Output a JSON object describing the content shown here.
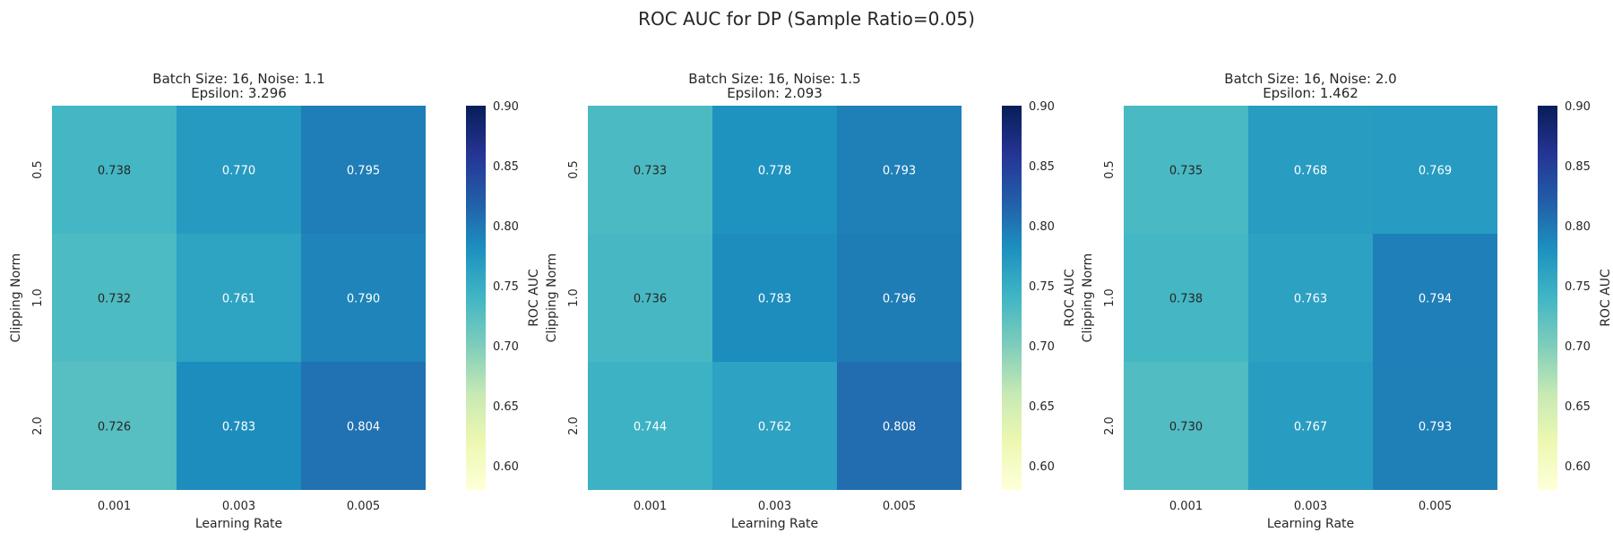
{
  "figure_title": "ROC AUC for DP (Sample Ratio=0.05)",
  "colorbar_label": "ROC AUC",
  "colorbar_ticks": [
    "0.60",
    "0.65",
    "0.70",
    "0.75",
    "0.80",
    "0.85",
    "0.90"
  ],
  "chart_data": [
    {
      "type": "heatmap",
      "title_line1": "Batch Size: 16, Noise: 1.1",
      "title_line2": "Epsilon: 3.296",
      "xlabel": "Learning Rate",
      "ylabel": "Clipping Norm",
      "x_categories": [
        "0.001",
        "0.003",
        "0.005"
      ],
      "y_categories": [
        "0.5",
        "1.0",
        "2.0"
      ],
      "values": [
        [
          0.738,
          0.77,
          0.795
        ],
        [
          0.732,
          0.761,
          0.79
        ],
        [
          0.726,
          0.783,
          0.804
        ]
      ],
      "vmin": 0.58,
      "vmax": 0.9,
      "colormap": "YlGnBu"
    },
    {
      "type": "heatmap",
      "title_line1": "Batch Size: 16, Noise: 1.5",
      "title_line2": "Epsilon: 2.093",
      "xlabel": "Learning Rate",
      "ylabel": "Clipping Norm",
      "x_categories": [
        "0.001",
        "0.003",
        "0.005"
      ],
      "y_categories": [
        "0.5",
        "1.0",
        "2.0"
      ],
      "values": [
        [
          0.733,
          0.778,
          0.793
        ],
        [
          0.736,
          0.783,
          0.796
        ],
        [
          0.744,
          0.762,
          0.808
        ]
      ],
      "vmin": 0.58,
      "vmax": 0.9,
      "colormap": "YlGnBu"
    },
    {
      "type": "heatmap",
      "title_line1": "Batch Size: 16, Noise: 2.0",
      "title_line2": "Epsilon: 1.462",
      "xlabel": "Learning Rate",
      "ylabel": "Clipping Norm",
      "x_categories": [
        "0.001",
        "0.003",
        "0.005"
      ],
      "y_categories": [
        "0.5",
        "1.0",
        "2.0"
      ],
      "values": [
        [
          0.735,
          0.768,
          0.769
        ],
        [
          0.738,
          0.763,
          0.794
        ],
        [
          0.73,
          0.767,
          0.793
        ]
      ],
      "vmin": 0.58,
      "vmax": 0.9,
      "colormap": "YlGnBu"
    }
  ]
}
